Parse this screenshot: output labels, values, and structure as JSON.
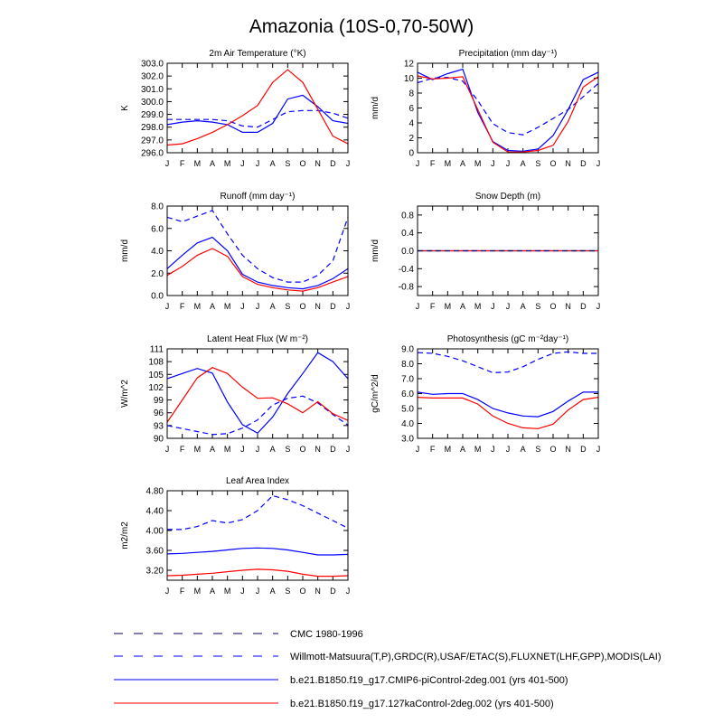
{
  "title": "Amazonia (10S-0,70-50W)",
  "colors": {
    "blue": "#0000ff",
    "red": "#ff0000",
    "axis": "#000000"
  },
  "months": [
    "J",
    "F",
    "M",
    "A",
    "M",
    "J",
    "J",
    "A",
    "S",
    "O",
    "N",
    "D",
    "J"
  ],
  "legend": [
    {
      "label": "CMC 1980-1996",
      "color": "#000066",
      "dash": "dashed"
    },
    {
      "label": "Willmott-Matsuura(T,P),GRDC(R),USAF/ETAC(S),FLUXNET(LHF,GPP),MODIS(LAI)",
      "color": "#0000ff",
      "dash": "dashed"
    },
    {
      "label": "b.e21.B1850.f19_g17.CMIP6-piControl-2deg.001 (yrs 401-500)",
      "color": "#0000ff",
      "dash": "solid"
    },
    {
      "label": "b.e21.B1850.f19_g17.127kaControl-2deg.002 (yrs 401-500)",
      "color": "#ff0000",
      "dash": "solid"
    }
  ],
  "chart_data": [
    {
      "type": "line",
      "title": "2m Air Temperature (°K)",
      "ylabel": "K",
      "ylim": [
        296.0,
        303.0
      ],
      "yticks": [
        "296.0",
        "297.0",
        "298.0",
        "299.0",
        "300.0",
        "301.0",
        "302.0",
        "303.0"
      ],
      "categories": [
        "J",
        "F",
        "M",
        "A",
        "M",
        "J",
        "J",
        "A",
        "S",
        "O",
        "N",
        "D",
        "J"
      ],
      "series": [
        {
          "name": "Willmott-Matsuura",
          "style": "dashed",
          "color": "#0000ff",
          "values": [
            298.6,
            298.6,
            298.6,
            298.6,
            298.5,
            298.1,
            298.0,
            298.6,
            299.2,
            299.3,
            299.3,
            299.1,
            298.7
          ]
        },
        {
          "name": "CMIP6-piControl",
          "style": "solid",
          "color": "#0000ff",
          "values": [
            298.2,
            298.4,
            298.5,
            298.4,
            298.2,
            297.6,
            297.6,
            298.3,
            300.2,
            300.5,
            299.6,
            298.5,
            298.3
          ]
        },
        {
          "name": "127kaControl",
          "style": "solid",
          "color": "#ff0000",
          "values": [
            296.6,
            296.7,
            297.1,
            297.6,
            298.2,
            298.9,
            299.7,
            301.5,
            302.5,
            301.5,
            299.4,
            297.3,
            296.7
          ]
        }
      ]
    },
    {
      "type": "line",
      "title": "Precipitation (mm day⁻¹)",
      "ylabel": "mm/d",
      "ylim": [
        0,
        12
      ],
      "yticks": [
        "0",
        "2",
        "4",
        "6",
        "8",
        "10",
        "12"
      ],
      "categories": [
        "J",
        "F",
        "M",
        "A",
        "M",
        "J",
        "J",
        "A",
        "S",
        "O",
        "N",
        "D",
        "J"
      ],
      "series": [
        {
          "name": "Willmott-Matsuura",
          "style": "dashed",
          "color": "#0000ff",
          "values": [
            9.4,
            10.0,
            10.1,
            9.6,
            7.0,
            3.9,
            2.7,
            2.4,
            3.4,
            4.6,
            5.8,
            7.5,
            9.3
          ]
        },
        {
          "name": "CMIP6-piControl",
          "style": "solid",
          "color": "#0000ff",
          "values": [
            10.8,
            9.8,
            10.6,
            11.2,
            5.4,
            1.5,
            0.3,
            0.2,
            0.5,
            2.3,
            5.8,
            9.8,
            10.8
          ]
        },
        {
          "name": "127kaControl",
          "style": "solid",
          "color": "#ff0000",
          "values": [
            10.3,
            9.9,
            10.0,
            10.2,
            5.8,
            1.4,
            0.1,
            0.1,
            0.3,
            1.0,
            4.2,
            8.8,
            10.2
          ]
        }
      ]
    },
    {
      "type": "line",
      "title": "Runoff (mm day⁻¹)",
      "ylabel": "mm/d",
      "ylim": [
        0.0,
        8.0
      ],
      "yticks": [
        "0.0",
        "2.0",
        "4.0",
        "6.0",
        "8.0"
      ],
      "categories": [
        "J",
        "F",
        "M",
        "A",
        "M",
        "J",
        "J",
        "A",
        "S",
        "O",
        "N",
        "D",
        "J"
      ],
      "series": [
        {
          "name": "Willmott-Matsuura",
          "style": "dashed",
          "color": "#0000ff",
          "values": [
            7.0,
            6.6,
            7.1,
            7.6,
            5.5,
            3.6,
            2.4,
            1.6,
            1.2,
            1.2,
            1.8,
            3.1,
            7.0
          ]
        },
        {
          "name": "CMIP6-piControl",
          "style": "solid",
          "color": "#0000ff",
          "values": [
            2.4,
            3.6,
            4.7,
            5.2,
            4.0,
            1.9,
            1.2,
            0.9,
            0.7,
            0.6,
            0.9,
            1.5,
            2.4
          ]
        },
        {
          "name": "127kaControl",
          "style": "solid",
          "color": "#ff0000",
          "values": [
            1.8,
            2.6,
            3.6,
            4.2,
            3.5,
            1.7,
            1.0,
            0.7,
            0.5,
            0.4,
            0.7,
            1.2,
            1.7
          ]
        }
      ]
    },
    {
      "type": "line",
      "title": "Snow Depth (m)",
      "ylabel": "mm/d",
      "ylim": [
        -1.0,
        1.0
      ],
      "yticks": [
        "-0.8",
        "-0.4",
        "0.0",
        "0.4",
        "0.8"
      ],
      "categories": [
        "J",
        "F",
        "M",
        "A",
        "M",
        "J",
        "J",
        "A",
        "S",
        "O",
        "N",
        "D",
        "J"
      ],
      "series": [
        {
          "name": "CMIP6-piControl",
          "style": "solid",
          "color": "#0000ff",
          "values": [
            0,
            0,
            0,
            0,
            0,
            0,
            0,
            0,
            0,
            0,
            0,
            0,
            0
          ]
        },
        {
          "name": "127kaControl",
          "style": "solid",
          "color": "#ff0000",
          "values": [
            0,
            0,
            0,
            0,
            0,
            0,
            0,
            0,
            0,
            0,
            0,
            0,
            0
          ]
        },
        {
          "name": "CMC",
          "style": "dashed",
          "color": "#000066",
          "values": [
            0,
            0,
            0,
            0,
            0,
            0,
            0,
            0,
            0,
            0,
            0,
            0,
            0
          ]
        }
      ]
    },
    {
      "type": "line",
      "title": "Latent Heat Flux (W m⁻²)",
      "ylabel": "W/m^2",
      "ylim": [
        90,
        111
      ],
      "yticks": [
        "90",
        "93",
        "96",
        "99",
        "102",
        "105",
        "108",
        "111"
      ],
      "categories": [
        "J",
        "F",
        "M",
        "A",
        "M",
        "J",
        "J",
        "A",
        "S",
        "O",
        "N",
        "D",
        "J"
      ],
      "series": [
        {
          "name": "FLUXNET",
          "style": "dashed",
          "color": "#0000ff",
          "values": [
            93.0,
            92.3,
            91.6,
            90.9,
            91.1,
            92.4,
            94.3,
            97.8,
            99.4,
            99.9,
            98.3,
            95.6,
            93.1
          ]
        },
        {
          "name": "CMIP6-piControl",
          "style": "solid",
          "color": "#0000ff",
          "values": [
            104.0,
            105.2,
            106.4,
            105.3,
            98.5,
            93.2,
            91.2,
            95.0,
            100.5,
            105.2,
            110.1,
            108.0,
            104.0
          ]
        },
        {
          "name": "127kaControl",
          "style": "solid",
          "color": "#ff0000",
          "values": [
            93.8,
            99.0,
            104.2,
            106.6,
            105.2,
            102.0,
            99.4,
            99.5,
            98.1,
            96.0,
            98.6,
            95.8,
            94.2
          ]
        }
      ]
    },
    {
      "type": "line",
      "title": "Photosynthesis (gC m⁻²day⁻¹)",
      "ylabel": "gC/m^2/d",
      "ylim": [
        3.0,
        9.0
      ],
      "yticks": [
        "3.0",
        "4.0",
        "5.0",
        "6.0",
        "7.0",
        "8.0",
        "9.0"
      ],
      "categories": [
        "J",
        "F",
        "M",
        "A",
        "M",
        "J",
        "J",
        "A",
        "S",
        "O",
        "N",
        "D",
        "J"
      ],
      "series": [
        {
          "name": "FLUXNET",
          "style": "dashed",
          "color": "#0000ff",
          "values": [
            8.75,
            8.7,
            8.5,
            8.2,
            7.8,
            7.4,
            7.45,
            7.8,
            8.3,
            8.7,
            8.8,
            8.7,
            8.7
          ]
        },
        {
          "name": "CMIP6-piControl",
          "style": "solid",
          "color": "#0000ff",
          "values": [
            6.1,
            5.95,
            6.0,
            6.0,
            5.6,
            5.0,
            4.7,
            4.5,
            4.45,
            4.8,
            5.5,
            6.1,
            6.1
          ]
        },
        {
          "name": "127kaControl",
          "style": "solid",
          "color": "#ff0000",
          "values": [
            5.75,
            5.7,
            5.7,
            5.7,
            5.3,
            4.5,
            4.0,
            3.7,
            3.65,
            3.95,
            4.9,
            5.6,
            5.75
          ]
        }
      ]
    },
    {
      "type": "line",
      "title": "Leaf Area Index",
      "ylabel": "m2/m2",
      "ylim": [
        3.0,
        4.8
      ],
      "yticks": [
        "3.20",
        "3.60",
        "4.00",
        "4.40",
        "4.80"
      ],
      "categories": [
        "J",
        "F",
        "M",
        "A",
        "M",
        "J",
        "J",
        "A",
        "S",
        "O",
        "N",
        "D",
        "J"
      ],
      "series": [
        {
          "name": "MODIS",
          "style": "dashed",
          "color": "#0000ff",
          "values": [
            4.02,
            4.02,
            4.08,
            4.2,
            4.15,
            4.22,
            4.4,
            4.7,
            4.62,
            4.5,
            4.35,
            4.2,
            4.05
          ]
        },
        {
          "name": "CMIP6-piControl",
          "style": "solid",
          "color": "#0000ff",
          "values": [
            3.53,
            3.54,
            3.56,
            3.58,
            3.61,
            3.64,
            3.65,
            3.64,
            3.61,
            3.56,
            3.51,
            3.51,
            3.52
          ]
        },
        {
          "name": "127kaControl",
          "style": "solid",
          "color": "#ff0000",
          "values": [
            3.09,
            3.1,
            3.12,
            3.14,
            3.17,
            3.2,
            3.22,
            3.21,
            3.18,
            3.12,
            3.08,
            3.08,
            3.09
          ]
        }
      ]
    }
  ]
}
